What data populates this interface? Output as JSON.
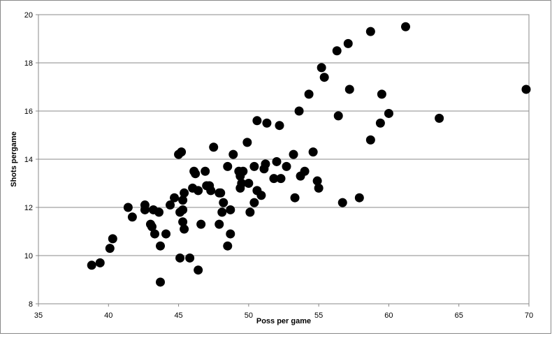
{
  "chart_data": {
    "type": "scatter",
    "x_label": "Poss per game",
    "y_label": "Shots pergame",
    "color": "#000000",
    "grid": true,
    "xlim": [
      35,
      70
    ],
    "xticks": [
      35,
      40,
      45,
      50,
      55,
      60,
      65,
      70
    ],
    "ylim": [
      8,
      20
    ],
    "yticks": [
      8,
      10,
      12,
      14,
      16,
      18,
      20
    ],
    "x": [
      38.8,
      39.4,
      40.1,
      40.3,
      41.4,
      41.7,
      42.6,
      42.6,
      43.0,
      43.1,
      43.2,
      43.3,
      43.6,
      43.7,
      43.7,
      44.1,
      44.4,
      44.7,
      45.0,
      45.2,
      45.1,
      45.1,
      45.3,
      45.3,
      45.3,
      45.4,
      45.4,
      45.8,
      46.0,
      46.1,
      46.2,
      46.4,
      46.4,
      46.6,
      46.9,
      47.0,
      47.2,
      47.3,
      47.5,
      47.9,
      47.9,
      48.0,
      48.1,
      48.2,
      48.5,
      48.5,
      48.7,
      48.7,
      48.9,
      49.3,
      49.4,
      49.4,
      49.5,
      49.6,
      49.9,
      50.0,
      50.1,
      50.4,
      50.4,
      50.6,
      50.6,
      50.9,
      51.1,
      51.2,
      51.3,
      51.8,
      52.0,
      52.2,
      52.3,
      52.7,
      53.2,
      53.3,
      53.6,
      53.7,
      54.0,
      54.3,
      54.6,
      54.9,
      55.0,
      55.2,
      55.4,
      56.3,
      56.4,
      56.7,
      57.1,
      57.2,
      57.9,
      58.7,
      58.7,
      59.4,
      59.5,
      60.0,
      61.2,
      63.6,
      69.8
    ],
    "values": [
      9.6,
      9.7,
      10.3,
      10.7,
      12.0,
      11.6,
      12.1,
      11.9,
      11.3,
      11.2,
      11.9,
      10.9,
      11.8,
      10.4,
      8.9,
      10.9,
      12.1,
      12.4,
      14.2,
      14.3,
      9.9,
      11.8,
      12.3,
      11.9,
      11.4,
      11.1,
      12.6,
      9.9,
      12.8,
      13.5,
      13.4,
      9.4,
      12.7,
      11.3,
      13.5,
      12.9,
      12.9,
      12.7,
      14.5,
      11.3,
      12.6,
      12.6,
      11.8,
      12.2,
      10.4,
      13.7,
      11.9,
      10.9,
      14.2,
      13.5,
      13.3,
      12.8,
      13.0,
      13.5,
      14.7,
      13.0,
      11.8,
      12.2,
      13.7,
      15.6,
      12.7,
      12.5,
      13.6,
      13.8,
      15.5,
      13.2,
      13.9,
      15.4,
      13.2,
      13.7,
      14.2,
      12.4,
      16.0,
      13.3,
      13.5,
      16.7,
      14.3,
      13.1,
      12.8,
      17.8,
      17.4,
      18.5,
      15.8,
      12.2,
      18.8,
      16.9,
      12.4,
      14.8,
      19.3,
      15.5,
      16.7,
      15.9,
      19.5,
      15.7,
      16.9
    ]
  }
}
